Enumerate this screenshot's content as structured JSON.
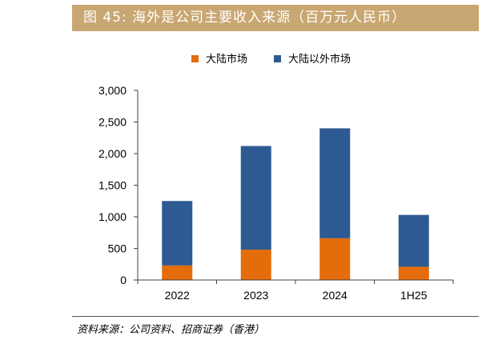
{
  "header": {
    "title": "图 45:  海外是公司主要收入来源（百万元人民币）"
  },
  "footer": {
    "source": "资料来源：公司资料、招商证券（香港）"
  },
  "colors": {
    "title_bar": "#c9a772",
    "mainland": "#e46c0a",
    "overseas": "#2e5a93",
    "axis": "#404040"
  },
  "chart_data": {
    "type": "bar",
    "stacked": true,
    "title": "",
    "xlabel": "",
    "ylabel": "",
    "categories": [
      "2022",
      "2023",
      "2024",
      "1H25"
    ],
    "ylim": [
      0,
      3000
    ],
    "yticks": [
      0,
      500,
      1000,
      1500,
      2000,
      2500,
      3000
    ],
    "ytick_labels": [
      "0",
      "500",
      "1,000",
      "1,500",
      "2,000",
      "2,500",
      "3,000"
    ],
    "legend_position": "top-center",
    "series": [
      {
        "name": "大陆市场",
        "color": "#e46c0a",
        "values": [
          230,
          480,
          660,
          210
        ]
      },
      {
        "name": "大陆以外市场",
        "color": "#2e5a93",
        "values": [
          1020,
          1640,
          1740,
          820
        ]
      }
    ]
  }
}
